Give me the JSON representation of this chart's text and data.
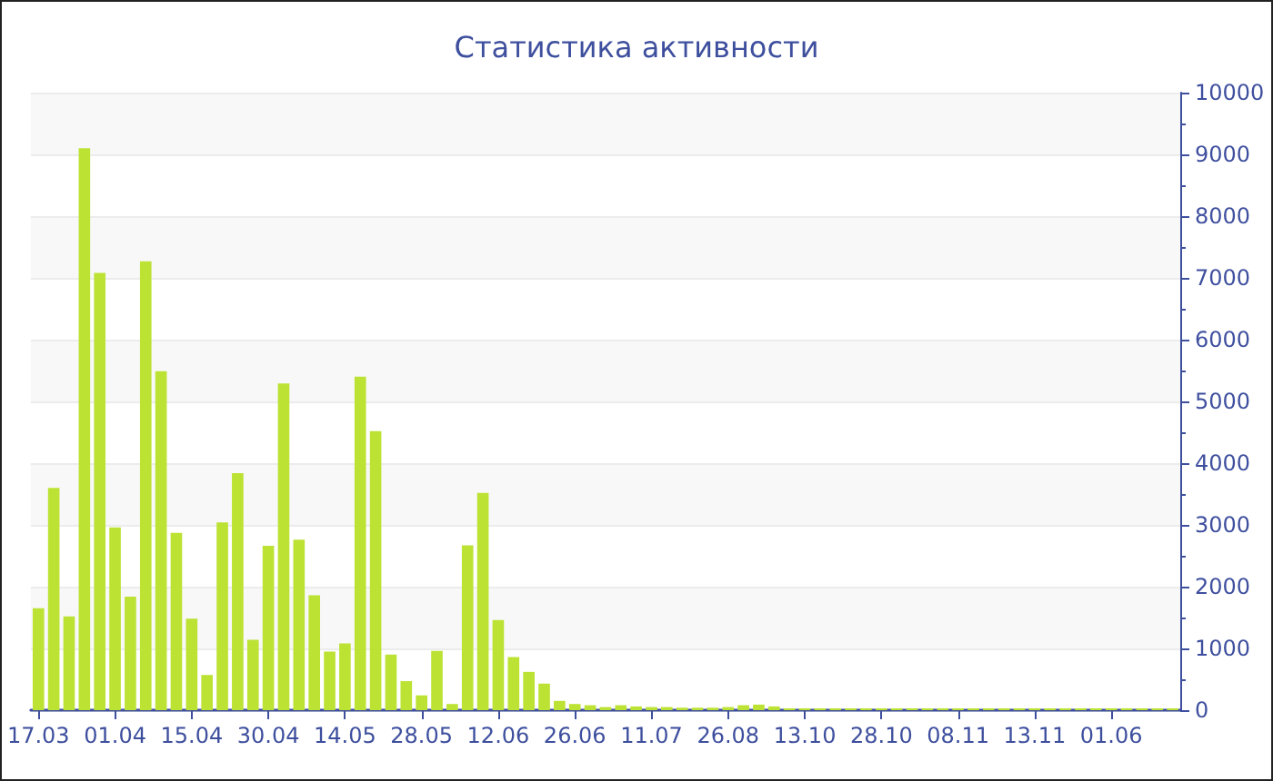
{
  "chart_data": {
    "type": "bar",
    "title": "Статистика активности",
    "categories": [
      "17.03",
      null,
      null,
      null,
      null,
      "01.04",
      null,
      null,
      null,
      null,
      "15.04",
      null,
      null,
      null,
      null,
      "30.04",
      null,
      null,
      null,
      null,
      "14.05",
      null,
      null,
      null,
      null,
      "28.05",
      null,
      null,
      null,
      null,
      "12.06",
      null,
      null,
      null,
      null,
      "26.06",
      null,
      null,
      null,
      null,
      "11.07",
      null,
      null,
      null,
      null,
      "26.08",
      null,
      null,
      null,
      null,
      "13.10",
      null,
      null,
      null,
      null,
      "28.10",
      null,
      null,
      null,
      null,
      "08.11",
      null,
      null,
      null,
      null,
      "13.11",
      null,
      null,
      null,
      null,
      "01.06",
      null,
      null,
      null,
      null
    ],
    "values": [
      1650,
      3600,
      1520,
      9100,
      7080,
      2960,
      1840,
      7270,
      5490,
      2870,
      1480,
      570,
      3040,
      3840,
      1140,
      2660,
      5290,
      2760,
      1860,
      950,
      1080,
      5400,
      4520,
      900,
      470,
      240,
      960,
      100,
      2670,
      3520,
      1460,
      860,
      620,
      430,
      150,
      100,
      80,
      50,
      80,
      60,
      50,
      50,
      40,
      40,
      40,
      50,
      80,
      90,
      60,
      30,
      30,
      30,
      30,
      30,
      30,
      30,
      30,
      30,
      30,
      30,
      30,
      30,
      30,
      30,
      30,
      30,
      30,
      30,
      30,
      30,
      30,
      30,
      30,
      30,
      30
    ],
    "color": "#bce234",
    "ylim": [
      0,
      10000
    ],
    "yticks": [
      0,
      1000,
      2000,
      3000,
      4000,
      5000,
      6000,
      7000,
      8000,
      9000,
      10000
    ],
    "grid": "y"
  }
}
